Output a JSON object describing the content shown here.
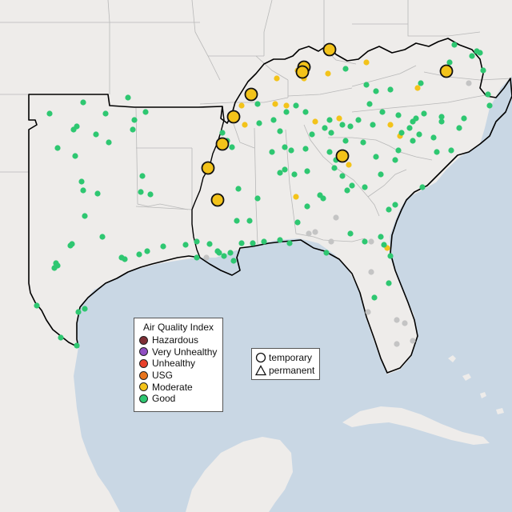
{
  "legend": {
    "title": "Air Quality Index",
    "categories": [
      {
        "label": "Hazardous",
        "color": "#7e2e35"
      },
      {
        "label": "Very Unhealthy",
        "color": "#8f4ec2"
      },
      {
        "label": "Unhealthy",
        "color": "#e8412c"
      },
      {
        "label": "USG",
        "color": "#e8741c"
      },
      {
        "label": "Moderate",
        "color": "#f3c31a"
      },
      {
        "label": "Good",
        "color": "#2ec771"
      }
    ],
    "no_data_color": "#c4c4c4"
  },
  "shape_legend": {
    "temporary_label": "temporary",
    "permanent_label": "permanent"
  },
  "map_colors": {
    "land": "#eeecea",
    "water": "#c9d7e4",
    "region_outline": "#000000",
    "state_border": "#b8b8b8"
  }
}
